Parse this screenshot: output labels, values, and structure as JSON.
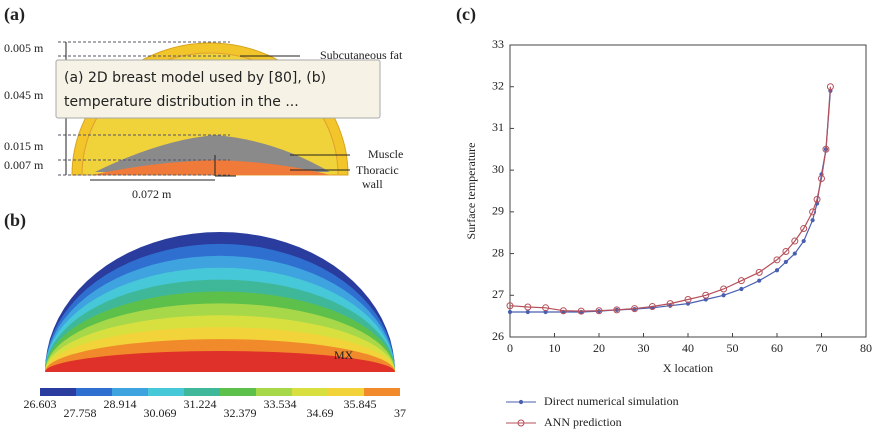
{
  "panel_labels": [
    "(a)",
    "(b)",
    "(c)"
  ],
  "diagram_a": {
    "dimensions": [
      "0.005 m",
      "0.045 m",
      "0.015 m",
      "0.007 m",
      "0.072 m"
    ],
    "layers": {
      "fat": "Subcutaneous fat",
      "muscle": "Muscle",
      "thoracic_wall": [
        "Thoracic",
        "wall"
      ]
    }
  },
  "tooltip": {
    "lines": [
      "(a) 2D breast model used by [80], (b)",
      "temperature distribution in the ..."
    ]
  },
  "panel_b": {
    "marker": "MX",
    "colorbar_labels": [
      26.603,
      27.758,
      28.914,
      30.069,
      31.224,
      32.379,
      33.534,
      34.69,
      35.845,
      37
    ]
  },
  "chart_data": {
    "type": "line",
    "xlabel": "X location",
    "ylabel": "Surface temperature",
    "xlim": [
      0,
      80
    ],
    "xticks": [
      0,
      10,
      20,
      30,
      40,
      50,
      60,
      70,
      80
    ],
    "ylim": [
      26,
      33
    ],
    "yticks": [
      26,
      27,
      28,
      29,
      30,
      31,
      32,
      33
    ],
    "x": [
      0,
      4,
      8,
      12,
      16,
      20,
      24,
      28,
      32,
      36,
      40,
      44,
      48,
      52,
      56,
      60,
      62,
      64,
      66,
      68,
      69,
      70,
      71,
      72
    ],
    "series": [
      {
        "name": "Direct numerical simulation",
        "color": "#4a5fb0",
        "values": [
          26.6,
          26.6,
          26.6,
          26.6,
          26.6,
          26.62,
          26.65,
          26.67,
          26.7,
          26.75,
          26.8,
          26.9,
          27.0,
          27.15,
          27.35,
          27.6,
          27.8,
          28.0,
          28.3,
          28.8,
          29.2,
          29.9,
          30.5,
          31.9
        ]
      },
      {
        "name": "ANN prediction",
        "color": "#b5505a",
        "values": [
          26.75,
          26.72,
          26.7,
          26.63,
          26.62,
          26.63,
          26.65,
          26.68,
          26.73,
          26.8,
          26.9,
          27.0,
          27.15,
          27.35,
          27.55,
          27.85,
          28.05,
          28.3,
          28.6,
          29.0,
          29.3,
          29.8,
          30.5,
          32.0
        ]
      }
    ]
  }
}
